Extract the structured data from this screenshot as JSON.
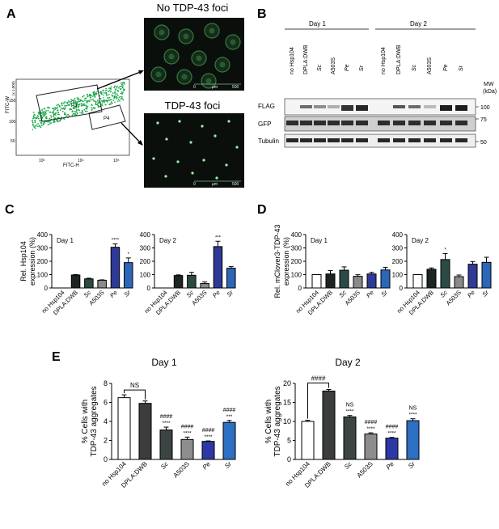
{
  "panel_letters": {
    "a": "A",
    "b": "B",
    "c": "C",
    "d": "D",
    "e": "E"
  },
  "panelA": {
    "micro_titles": [
      "No TDP-43 foci",
      "TDP-43 foci"
    ],
    "scale": [
      "0",
      "µm",
      "500"
    ],
    "facs": {
      "xlabel": "FITC-H",
      "ylabel": "FITC-W",
      "gates": [
        "P3",
        "P4"
      ],
      "xticks": [
        "10³",
        "10⁴",
        "10⁵"
      ],
      "yticks": [
        "(x 1,000)",
        "150",
        "100",
        "50"
      ]
    }
  },
  "panelB": {
    "days": [
      "Day 1",
      "Day 2"
    ],
    "lanes": [
      "no Hsp104",
      "DPLA:DWB",
      "Sc",
      "A503S",
      "Pe",
      "Sr"
    ],
    "lanes_italic": [
      false,
      false,
      true,
      false,
      true,
      true
    ],
    "bands": [
      "FLAG",
      "GFP",
      "Tubulin"
    ],
    "mw_label": [
      "MW",
      "(kDa)"
    ],
    "mw_marks": [
      "100",
      "75",
      "50"
    ]
  },
  "categories": [
    "no Hsp104",
    "DPLA:DWB",
    "Sc",
    "A503S",
    "Pe",
    "Sr"
  ],
  "categories_italic": [
    false,
    false,
    true,
    false,
    true,
    true
  ],
  "colors": [
    "#ffffff",
    "#1c2521",
    "#2b4a44",
    "#8a8a8a",
    "#2e3a96",
    "#2c66b8"
  ],
  "colorsE": [
    "#ffffff",
    "#3b3d3d",
    "#3c4444",
    "#8d8d8d",
    "#2d38a4",
    "#2d6fc2"
  ],
  "chart_data": [
    {
      "id": "C1",
      "type": "bar",
      "title": "Day 1",
      "ylabel": "Rel. Hsp104\nexpression (%)",
      "ylim": [
        0,
        400
      ],
      "yticks": [
        0,
        100,
        200,
        300,
        400
      ],
      "categories": [
        "no Hsp104",
        "DPLA:DWB",
        "Sc",
        "A503S",
        "Pe",
        "Sr"
      ],
      "values": [
        0,
        97,
        68,
        58,
        305,
        190
      ],
      "errors": [
        0,
        3,
        5,
        3,
        25,
        35
      ],
      "annotations": [
        "",
        "",
        "",
        "",
        "****",
        "*"
      ]
    },
    {
      "id": "C2",
      "type": "bar",
      "title": "Day 2",
      "ylabel": "",
      "ylim": [
        0,
        400
      ],
      "yticks": [
        0,
        100,
        200,
        300,
        400
      ],
      "categories": [
        "no Hsp104",
        "DPLA:DWB",
        "Sc",
        "A503S",
        "Pe",
        "Sr"
      ],
      "values": [
        0,
        93,
        95,
        33,
        310,
        148
      ],
      "errors": [
        0,
        5,
        22,
        12,
        40,
        12
      ],
      "annotations": [
        "",
        "",
        "",
        "",
        "***",
        ""
      ]
    },
    {
      "id": "D1",
      "type": "bar",
      "title": "Day 1",
      "ylabel": "Rel. mClover3-TDP-43\nexpression (%)",
      "ylim": [
        0,
        400
      ],
      "yticks": [
        0,
        100,
        200,
        300,
        400
      ],
      "categories": [
        "no Hsp104",
        "DPLA:DWB",
        "Sc",
        "A503S",
        "Pe",
        "Sr"
      ],
      "values": [
        100,
        105,
        133,
        87,
        105,
        135
      ],
      "errors": [
        0,
        25,
        25,
        12,
        12,
        20
      ],
      "annotations": [
        "",
        "",
        "",
        "",
        "",
        ""
      ]
    },
    {
      "id": "D2",
      "type": "bar",
      "title": "Day 2",
      "ylabel": "",
      "ylim": [
        0,
        400
      ],
      "yticks": [
        0,
        100,
        200,
        300,
        400
      ],
      "categories": [
        "no Hsp104",
        "DPLA:DWB",
        "Sc",
        "A503S",
        "Pe",
        "Sr"
      ],
      "values": [
        100,
        140,
        213,
        85,
        178,
        192
      ],
      "errors": [
        0,
        10,
        45,
        12,
        20,
        38
      ],
      "annotations": [
        "",
        "",
        "*",
        "",
        "",
        ""
      ]
    },
    {
      "id": "E1",
      "type": "bar",
      "title": "Day 1",
      "ylabel": "% Cells with\nTDP-43 aggregates",
      "ylim": [
        0,
        8
      ],
      "yticks": [
        0,
        2,
        4,
        6,
        8
      ],
      "categories": [
        "no Hsp104",
        "DPLA:DWB",
        "Sc",
        "A503S",
        "Pe",
        "Sr"
      ],
      "values": [
        6.5,
        5.9,
        3.1,
        2.1,
        1.9,
        3.9
      ],
      "errors": [
        0.3,
        0.25,
        0.3,
        0.25,
        0.05,
        0.2
      ],
      "hash": [
        "",
        "",
        "####",
        "####",
        "####",
        "####"
      ],
      "stars": [
        "",
        "",
        "****",
        "****",
        "****",
        "***"
      ],
      "ns_bracket": {
        "from": 0,
        "to": 1,
        "label": "NS"
      }
    },
    {
      "id": "E2",
      "type": "bar",
      "title": "Day 2",
      "ylabel": "% Cells with\nTDP-43 aggregates",
      "ylim": [
        0,
        20
      ],
      "yticks": [
        0,
        5,
        10,
        15,
        20
      ],
      "categories": [
        "no Hsp104",
        "DPLA:DWB",
        "Sc",
        "A503S",
        "Pe",
        "Sr"
      ],
      "values": [
        10,
        18,
        11.2,
        6.7,
        5.6,
        10.2
      ],
      "errors": [
        0.3,
        0.4,
        0.35,
        0.3,
        0.2,
        0.5
      ],
      "hash": [
        "",
        "",
        "NS",
        "####",
        "####",
        "NS"
      ],
      "stars": [
        "",
        "",
        "****",
        "****",
        "****",
        "****"
      ],
      "hash_bracket": {
        "from": 0,
        "to": 1,
        "label": "####"
      }
    }
  ]
}
